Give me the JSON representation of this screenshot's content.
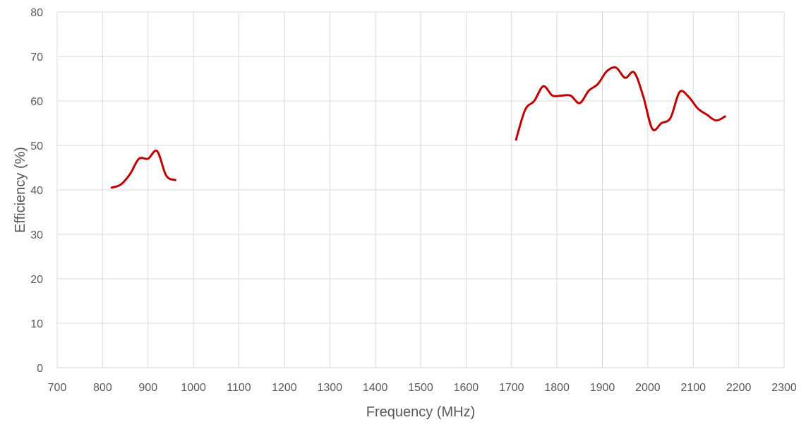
{
  "chart_data": {
    "type": "line",
    "title": "",
    "xlabel": "Frequency (MHz)",
    "ylabel": "Efficiency (%)",
    "xlim": [
      700,
      2300
    ],
    "ylim": [
      0,
      80
    ],
    "x_ticks": [
      700,
      800,
      900,
      1000,
      1100,
      1200,
      1300,
      1400,
      1500,
      1600,
      1700,
      1800,
      1900,
      2000,
      2100,
      2200,
      2300
    ],
    "y_ticks": [
      0,
      10,
      20,
      30,
      40,
      50,
      60,
      70,
      80
    ],
    "grid": true,
    "legend": "none",
    "line_color": "#c00000",
    "series": [
      {
        "x": [
          820,
          840,
          860,
          880,
          900,
          920,
          940,
          960
        ],
        "y": [
          40.5,
          41.2,
          43.5,
          47.0,
          47.0,
          48.7,
          43.2,
          42.2
        ]
      },
      {
        "x": [
          1710,
          1730,
          1750,
          1770,
          1790,
          1810,
          1830,
          1850,
          1870,
          1890,
          1910,
          1930,
          1950,
          1970,
          1990,
          2010,
          2030,
          2050,
          2070,
          2090,
          2110,
          2130,
          2150,
          2170
        ],
        "y": [
          51.3,
          58.0,
          60.0,
          63.3,
          61.2,
          61.2,
          61.2,
          59.5,
          62.3,
          63.8,
          66.7,
          67.5,
          65.2,
          66.4,
          61.0,
          53.7,
          55.0,
          56.2,
          62.0,
          60.9,
          58.3,
          56.9,
          55.6,
          56.5
        ]
      }
    ]
  }
}
